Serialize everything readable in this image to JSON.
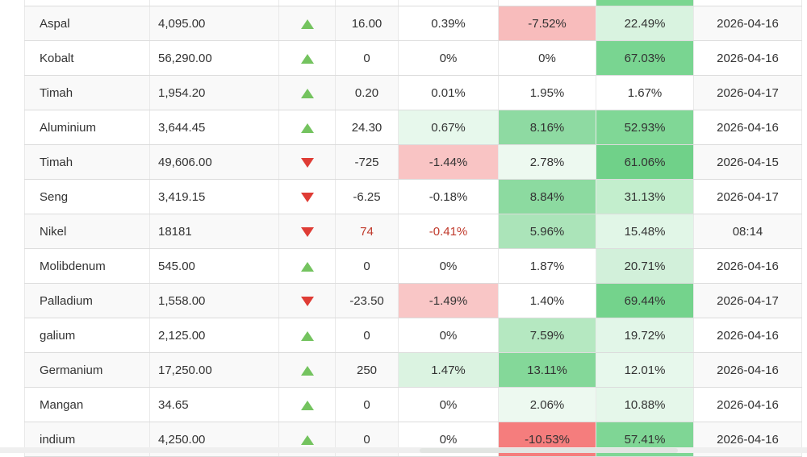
{
  "widget": {
    "description_colors": {
      "row_stripe": "#f9f9f9",
      "arrow_up": "#74c35f",
      "arrow_down": "#df3c35",
      "negative_text": "#c0392b",
      "strong_red_bg": "#f57d7d",
      "light_red_bg": "#f8bcbc",
      "strong_green_bg": "#70d189",
      "light_green_bg": "#d9f3e0"
    },
    "top_partial_row": {
      "highlight_color": "#7ad690"
    },
    "rows": [
      {
        "name": "Aspal",
        "price": "4,095.00",
        "dir": "up",
        "change": "16.00",
        "pct1": "0.39%",
        "pct1_bg": "",
        "pct2": "-7.52%",
        "pct2_bg": "#f8bcbc",
        "pct3": "22.49%",
        "pct3_bg": "#d9f3e0",
        "date": "2026-04-16",
        "red_text": false
      },
      {
        "name": "Kobalt",
        "price": "56,290.00",
        "dir": "up",
        "change": "0",
        "pct1": "0%",
        "pct1_bg": "",
        "pct2": "0%",
        "pct2_bg": "",
        "pct3": "67.03%",
        "pct3_bg": "#79d591",
        "date": "2026-04-16",
        "red_text": false
      },
      {
        "name": "Timah",
        "price": "1,954.20",
        "dir": "up",
        "change": "0.20",
        "pct1": "0.01%",
        "pct1_bg": "",
        "pct2": "1.95%",
        "pct2_bg": "",
        "pct3": "1.67%",
        "pct3_bg": "",
        "date": "2026-04-17",
        "red_text": false
      },
      {
        "name": "Aluminium",
        "price": "3,644.45",
        "dir": "up",
        "change": "24.30",
        "pct1": "0.67%",
        "pct1_bg": "#e7f8ec",
        "pct2": "8.16%",
        "pct2_bg": "#8edaa2",
        "pct3": "52.93%",
        "pct3_bg": "#80d796",
        "date": "2026-04-16",
        "red_text": false
      },
      {
        "name": "Timah",
        "price": "49,606.00",
        "dir": "down",
        "change": "-725",
        "pct1": "-1.44%",
        "pct1_bg": "#f9c4c4",
        "pct2": "2.78%",
        "pct2_bg": "#edf9f0",
        "pct3": "61.06%",
        "pct3_bg": "#70d189",
        "date": "2026-04-15",
        "red_text": false
      },
      {
        "name": "Seng",
        "price": "3,419.15",
        "dir": "down",
        "change": "-6.25",
        "pct1": "-0.18%",
        "pct1_bg": "",
        "pct2": "8.84%",
        "pct2_bg": "#8cdaa0",
        "pct3": "31.13%",
        "pct3_bg": "#c3eecd",
        "date": "2026-04-17",
        "red_text": false
      },
      {
        "name": "Nikel",
        "price": "18181",
        "dir": "down",
        "change": "74",
        "pct1": "-0.41%",
        "pct1_bg": "",
        "pct2": "5.96%",
        "pct2_bg": "#abe4b9",
        "pct3": "15.48%",
        "pct3_bg": "#e1f6e7",
        "date": "08:14",
        "red_text": true
      },
      {
        "name": "Molibdenum",
        "price": "545.00",
        "dir": "up",
        "change": "0",
        "pct1": "0%",
        "pct1_bg": "",
        "pct2": "1.87%",
        "pct2_bg": "",
        "pct3": "20.71%",
        "pct3_bg": "#d2f0da",
        "date": "2026-04-16",
        "red_text": false
      },
      {
        "name": "Palladium",
        "price": "1,558.00",
        "dir": "down",
        "change": "-23.50",
        "pct1": "-1.49%",
        "pct1_bg": "#f9c6c6",
        "pct2": "1.40%",
        "pct2_bg": "",
        "pct3": "69.44%",
        "pct3_bg": "#74d38c",
        "date": "2026-04-17",
        "red_text": false
      },
      {
        "name": "galium",
        "price": "2,125.00",
        "dir": "up",
        "change": "0",
        "pct1": "0%",
        "pct1_bg": "",
        "pct2": "7.59%",
        "pct2_bg": "#b5e8c1",
        "pct3": "19.72%",
        "pct3_bg": "#e2f6e8",
        "date": "2026-04-16",
        "red_text": false
      },
      {
        "name": "Germanium",
        "price": "17,250.00",
        "dir": "up",
        "change": "250",
        "pct1": "1.47%",
        "pct1_bg": "#dbf3e1",
        "pct2": "13.11%",
        "pct2_bg": "#84d899",
        "pct3": "12.01%",
        "pct3_bg": "#e7f8ec",
        "date": "2026-04-16",
        "red_text": false
      },
      {
        "name": "Mangan",
        "price": "34.65",
        "dir": "up",
        "change": "0",
        "pct1": "0%",
        "pct1_bg": "",
        "pct2": "2.06%",
        "pct2_bg": "#edf9f0",
        "pct3": "10.88%",
        "pct3_bg": "#e5f7ea",
        "date": "2026-04-16",
        "red_text": false
      },
      {
        "name": "indium",
        "price": "4,250.00",
        "dir": "up",
        "change": "0",
        "pct1": "0%",
        "pct1_bg": "",
        "pct2": "-10.53%",
        "pct2_bg": "#f57d7d",
        "pct3": "57.41%",
        "pct3_bg": "#7fd695",
        "date": "2026-04-16",
        "red_text": false
      }
    ]
  }
}
